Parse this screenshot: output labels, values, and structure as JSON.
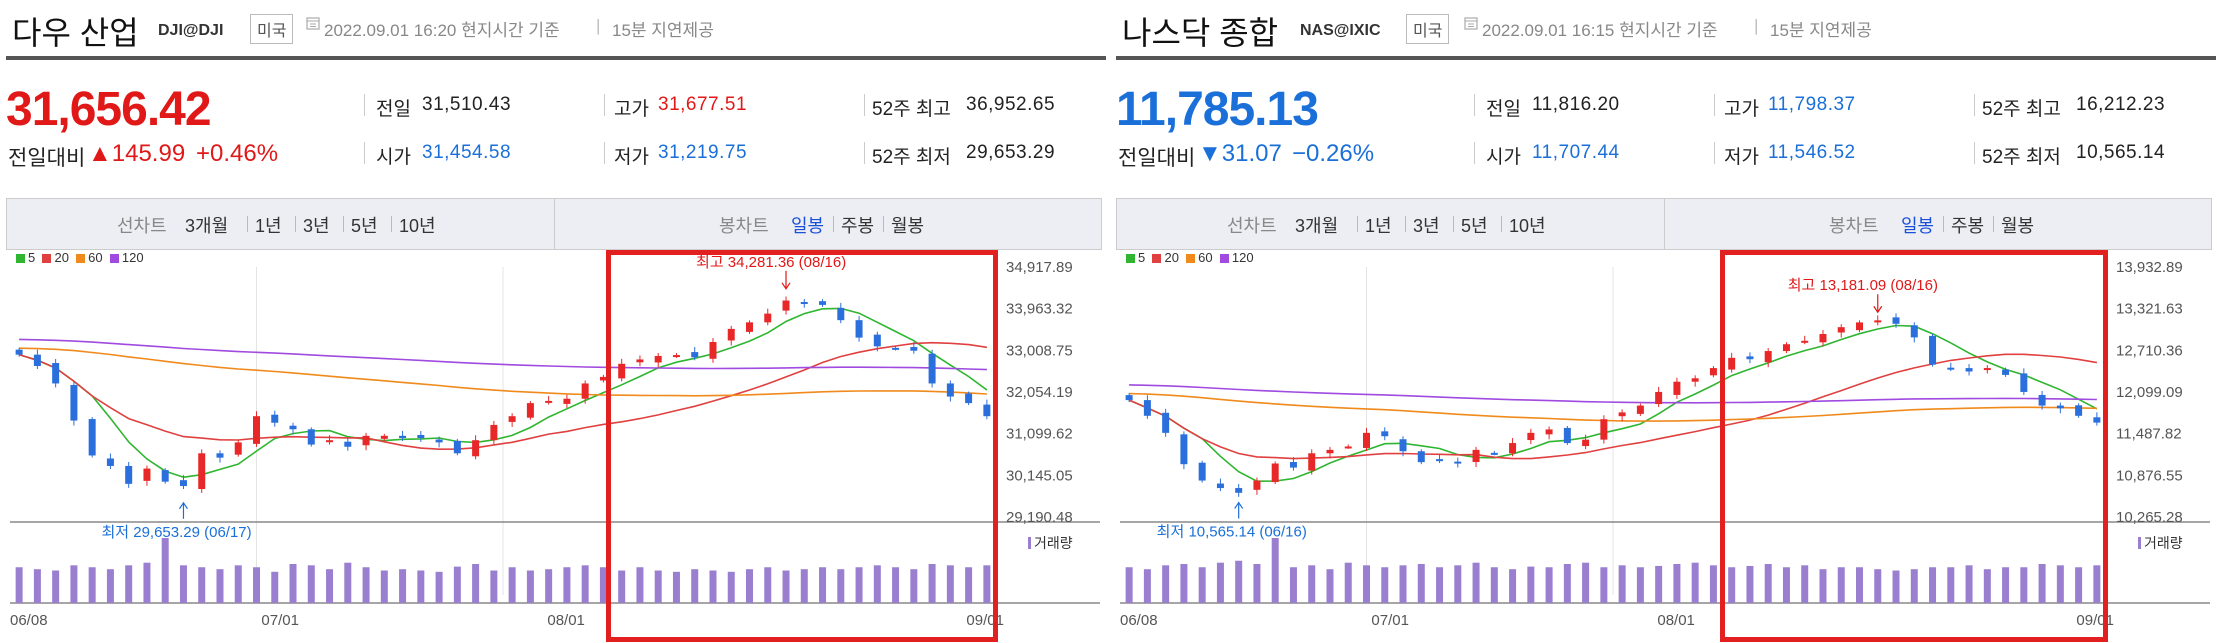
{
  "panels": [
    {
      "title": "다우 산업",
      "code": "DJI@DJI",
      "country": "미국",
      "time": "2022.09.01 16:20 현지시간 기준",
      "delay": "15분 지연제공",
      "price": "31,656.42",
      "change_label": "전일대비",
      "change_dir": "up",
      "change": "▲145.99",
      "change_pct": "+0.46%",
      "stats": [
        {
          "label": "전일",
          "value": "31,510.43",
          "color": "#222222"
        },
        {
          "label": "고가",
          "value": "31,677.51",
          "color": "#e01818"
        },
        {
          "label": "52주 최고",
          "value": "36,952.65",
          "color": "#222222"
        },
        {
          "label": "시가",
          "value": "31,454.58",
          "color": "#1a6fd8"
        },
        {
          "label": "저가",
          "value": "31,219.75",
          "color": "#1a6fd8"
        },
        {
          "label": "52주 최저",
          "value": "29,653.29",
          "color": "#222222"
        }
      ]
    },
    {
      "title": "나스닥 종합",
      "code": "NAS@IXIC",
      "country": "미국",
      "time": "2022.09.01 16:15 현지시간 기준",
      "delay": "15분 지연제공",
      "price": "11,785.13",
      "change_label": "전일대비",
      "change_dir": "down",
      "change": "▼31.07",
      "change_pct": "−0.26%",
      "stats": [
        {
          "label": "전일",
          "value": "11,816.20",
          "color": "#222222"
        },
        {
          "label": "고가",
          "value": "11,798.37",
          "color": "#1a6fd8"
        },
        {
          "label": "52주 최고",
          "value": "16,212.23",
          "color": "#222222"
        },
        {
          "label": "시가",
          "value": "11,707.44",
          "color": "#1a6fd8"
        },
        {
          "label": "저가",
          "value": "11,546.52",
          "color": "#1a6fd8"
        },
        {
          "label": "52주 최저",
          "value": "10,565.14",
          "color": "#222222"
        }
      ]
    }
  ],
  "tabs": {
    "line_chart": "선차트",
    "line_ranges": [
      "3개월",
      "1년",
      "3년",
      "5년",
      "10년"
    ],
    "candle_chart": "봉차트",
    "candle_periods": [
      "일봉",
      "주봉",
      "월봉"
    ],
    "selected_candle": "일봉"
  },
  "legend": [
    {
      "label": "5",
      "color": "#2fb52f"
    },
    {
      "label": "20",
      "color": "#e04040"
    },
    {
      "label": "60",
      "color": "#f08a1c"
    },
    {
      "label": "120",
      "color": "#a04ae0"
    }
  ],
  "volume_label": "거래량",
  "chart_data": [
    {
      "type": "candlestick",
      "title": "다우 산업",
      "x_ticks": [
        "06/08",
        "07/01",
        "08/01",
        "09/01"
      ],
      "y_ticks": [
        "34,917.89",
        "33,963.32",
        "33,008.75",
        "32,054.19",
        "31,099.62",
        "30,145.05",
        "29,190.48"
      ],
      "ylim": [
        29190.48,
        34917.89
      ],
      "annotations": [
        {
          "text": "최고 34,281.36 (08/16)",
          "value": 34281.36,
          "date": "08/16",
          "color": "#e01818"
        },
        {
          "text": "최저 29,653.29 (06/17)",
          "value": 29653.29,
          "date": "06/17",
          "color": "#1a6fd8"
        }
      ],
      "closes": [
        32910,
        32650,
        32250,
        31400,
        30600,
        30360,
        29950,
        30300,
        30000,
        29900,
        30650,
        30550,
        30900,
        31500,
        31350,
        31200,
        30850,
        30950,
        30800,
        31050,
        31050,
        31000,
        31000,
        30900,
        30650,
        30950,
        31300,
        31500,
        31800,
        31850,
        31900,
        32250,
        32400,
        32700,
        32800,
        32880,
        32900,
        32850,
        33200,
        33500,
        33650,
        33850,
        34150,
        34100,
        34050,
        33700,
        33300,
        33100,
        33050,
        33000,
        32250,
        31950,
        31800,
        31500
      ],
      "volumes": [
        0.55,
        0.52,
        0.5,
        0.58,
        0.55,
        0.52,
        0.58,
        0.62,
        1.0,
        0.58,
        0.55,
        0.52,
        0.58,
        0.55,
        0.48,
        0.6,
        0.58,
        0.52,
        0.62,
        0.55,
        0.5,
        0.52,
        0.5,
        0.48,
        0.56,
        0.6,
        0.5,
        0.55,
        0.5,
        0.52,
        0.55,
        0.58,
        0.55,
        0.5,
        0.55,
        0.5,
        0.48,
        0.52,
        0.5,
        0.48,
        0.52,
        0.55,
        0.5,
        0.52,
        0.55,
        0.52,
        0.55,
        0.58,
        0.55,
        0.52,
        0.6,
        0.58,
        0.55,
        0.58
      ],
      "highlight_range": [
        "08/01",
        "09/01"
      ]
    },
    {
      "type": "candlestick",
      "title": "나스닥 종합",
      "x_ticks": [
        "06/08",
        "07/01",
        "08/01",
        "09/01"
      ],
      "y_ticks": [
        "13,932.89",
        "13,321.63",
        "12,710.36",
        "12,099.09",
        "11,487.82",
        "10,876.55",
        "10,265.28"
      ],
      "ylim": [
        10265.28,
        13932.89
      ],
      "annotations": [
        {
          "text": "최고 13,181.09 (08/16)",
          "value": 13181.09,
          "date": "08/16",
          "color": "#e01818"
        },
        {
          "text": "최저 10,565.14 (06/16)",
          "value": 10565.14,
          "date": "06/16",
          "color": "#1a6fd8"
        }
      ],
      "closes": [
        11980,
        11750,
        11500,
        11040,
        10800,
        10690,
        10620,
        10800,
        11050,
        10990,
        11200,
        11250,
        11300,
        11500,
        11450,
        11230,
        11070,
        11100,
        11050,
        11250,
        11200,
        11350,
        11500,
        11550,
        11350,
        11400,
        11700,
        11800,
        11900,
        12100,
        12250,
        12300,
        12450,
        12600,
        12580,
        12700,
        12800,
        12850,
        12950,
        13050,
        13120,
        13150,
        13100,
        12900,
        12500,
        12450,
        12400,
        12450,
        12350,
        12100,
        11900,
        11860,
        11750,
        11650
      ],
      "volumes": [
        0.55,
        0.52,
        0.58,
        0.6,
        0.55,
        0.62,
        0.65,
        0.6,
        1.0,
        0.55,
        0.58,
        0.52,
        0.62,
        0.58,
        0.55,
        0.58,
        0.6,
        0.55,
        0.58,
        0.62,
        0.55,
        0.52,
        0.56,
        0.55,
        0.6,
        0.62,
        0.55,
        0.58,
        0.55,
        0.57,
        0.6,
        0.62,
        0.58,
        0.55,
        0.57,
        0.6,
        0.55,
        0.58,
        0.52,
        0.55,
        0.55,
        0.52,
        0.5,
        0.52,
        0.55,
        0.55,
        0.58,
        0.52,
        0.55,
        0.55,
        0.6,
        0.58,
        0.55,
        0.58
      ],
      "highlight_range": [
        "08/01",
        "09/01"
      ]
    }
  ]
}
